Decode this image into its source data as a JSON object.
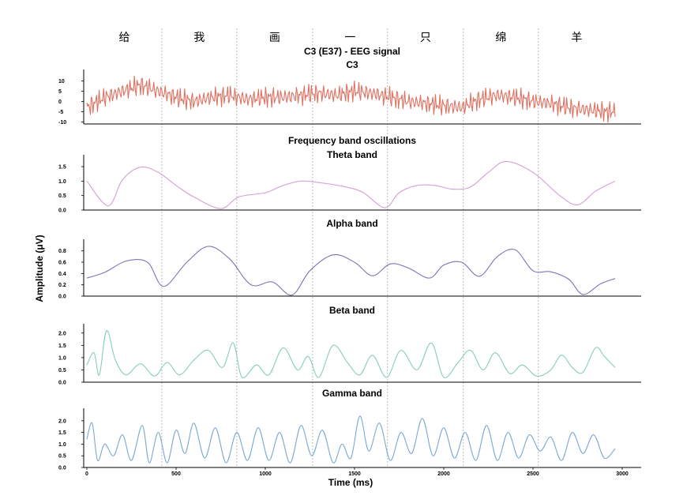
{
  "chart_data": {
    "type": "line",
    "x_axis": {
      "label": "Time (ms)",
      "range": [
        0,
        3000
      ],
      "ticks": [
        0,
        500,
        1000,
        1500,
        2000,
        2500,
        3000
      ]
    },
    "y_axis": {
      "label": "Amplitude  (μV)"
    },
    "words": [
      {
        "text": "给",
        "start": 0,
        "end": 420
      },
      {
        "text": "我",
        "start": 420,
        "end": 840
      },
      {
        "text": "画",
        "start": 840,
        "end": 1265
      },
      {
        "text": "一",
        "start": 1265,
        "end": 1685
      },
      {
        "text": "只",
        "start": 1685,
        "end": 2110
      },
      {
        "text": "绵",
        "start": 2110,
        "end": 2530
      },
      {
        "text": "羊",
        "start": 2530,
        "end": 2960
      }
    ],
    "word_boundaries": [
      420,
      840,
      1265,
      1685,
      2110,
      2530
    ],
    "section_titles": {
      "eeg": "C3 (E37) - EEG signal",
      "bands": "Frequency band oscillations"
    },
    "panels": [
      {
        "id": "eeg",
        "title": "C3",
        "color": "#e07060",
        "ylim": [
          -11,
          14
        ],
        "yticks": [
          10,
          5,
          0,
          -5,
          -10
        ],
        "x": [
          0,
          100,
          200,
          300,
          400,
          500,
          600,
          700,
          800,
          900,
          1000,
          1100,
          1200,
          1300,
          1400,
          1500,
          1600,
          1700,
          1800,
          1900,
          2000,
          2100,
          2200,
          2300,
          2400,
          2500,
          2600,
          2700,
          2800,
          2900,
          2960
        ],
        "values": [
          -3,
          2,
          5,
          8,
          5,
          2,
          0,
          2,
          3,
          1,
          2,
          2,
          3,
          4,
          3,
          5,
          4,
          2,
          0,
          -1,
          -2,
          -3,
          1,
          3,
          2,
          0,
          -1,
          -3,
          -4,
          -5,
          -5
        ]
      },
      {
        "id": "theta",
        "title": "Theta band",
        "color": "#d4a0d2",
        "ylim": [
          0,
          1.8
        ],
        "yticks": [
          1.5,
          1.0,
          0.5,
          0.0
        ],
        "x": [
          0,
          120,
          200,
          300,
          400,
          500,
          600,
          750,
          850,
          1000,
          1100,
          1200,
          1300,
          1450,
          1550,
          1670,
          1750,
          1850,
          1950,
          2050,
          2150,
          2250,
          2350,
          2500,
          2650,
          2750,
          2850,
          2960
        ],
        "values": [
          1.0,
          0.15,
          1.05,
          1.48,
          1.3,
          0.85,
          0.45,
          0.05,
          0.45,
          0.6,
          0.85,
          1.0,
          0.95,
          0.8,
          0.6,
          0.08,
          0.6,
          0.85,
          0.85,
          0.72,
          0.8,
          1.3,
          1.68,
          1.3,
          0.5,
          0.18,
          0.65,
          1.0
        ]
      },
      {
        "id": "alpha",
        "title": "Alpha band",
        "color": "#7d74b8",
        "ylim": [
          0,
          0.95
        ],
        "yticks": [
          0.8,
          0.6,
          0.4,
          0.2,
          0.0
        ],
        "x": [
          0,
          100,
          220,
          340,
          430,
          560,
          680,
          800,
          920,
          1040,
          1150,
          1250,
          1380,
          1500,
          1600,
          1700,
          1800,
          1920,
          2000,
          2100,
          2200,
          2300,
          2400,
          2500,
          2600,
          2700,
          2780,
          2880,
          2960
        ],
        "values": [
          0.32,
          0.42,
          0.62,
          0.6,
          0.17,
          0.6,
          0.88,
          0.66,
          0.2,
          0.25,
          0.02,
          0.45,
          0.73,
          0.6,
          0.36,
          0.57,
          0.5,
          0.32,
          0.55,
          0.6,
          0.35,
          0.7,
          0.82,
          0.45,
          0.43,
          0.3,
          0.03,
          0.22,
          0.31
        ]
      },
      {
        "id": "beta",
        "title": "Beta band",
        "color": "#86cfaf",
        "ylim": [
          0,
          2.25
        ],
        "yticks": [
          2.0,
          1.5,
          1.0,
          0.5,
          0.0
        ],
        "x": [
          0,
          40,
          70,
          110,
          160,
          220,
          300,
          380,
          450,
          520,
          600,
          680,
          760,
          820,
          870,
          950,
          1020,
          1100,
          1180,
          1240,
          1300,
          1380,
          1460,
          1530,
          1600,
          1680,
          1760,
          1850,
          1930,
          2000,
          2080,
          2150,
          2220,
          2290,
          2370,
          2440,
          2520,
          2600,
          2660,
          2720,
          2780,
          2850,
          2900,
          2960
        ],
        "values": [
          0.7,
          1.2,
          0.3,
          2.1,
          0.9,
          0.3,
          0.75,
          0.25,
          0.8,
          0.3,
          0.9,
          1.3,
          0.6,
          1.6,
          0.2,
          0.7,
          0.3,
          1.4,
          0.5,
          1.05,
          0.2,
          1.5,
          0.8,
          0.3,
          1.1,
          0.2,
          1.3,
          0.5,
          1.6,
          0.2,
          0.8,
          1.3,
          0.5,
          1.2,
          0.35,
          0.7,
          0.25,
          0.5,
          1.1,
          0.6,
          0.4,
          1.4,
          1.05,
          0.6
        ]
      },
      {
        "id": "gamma",
        "title": "Gamma band",
        "color": "#7aa8d6",
        "ylim": [
          0,
          2.4
        ],
        "yticks": [
          2.0,
          1.5,
          1.0,
          0.5,
          0.0
        ],
        "x": [
          0,
          30,
          60,
          100,
          150,
          200,
          250,
          310,
          350,
          400,
          450,
          500,
          550,
          600,
          660,
          720,
          780,
          840,
          900,
          960,
          1020,
          1080,
          1140,
          1200,
          1260,
          1320,
          1380,
          1430,
          1480,
          1530,
          1580,
          1640,
          1700,
          1760,
          1820,
          1880,
          1940,
          2000,
          2060,
          2120,
          2180,
          2240,
          2300,
          2360,
          2420,
          2480,
          2540,
          2600,
          2660,
          2720,
          2780,
          2840,
          2900,
          2960
        ],
        "values": [
          1.2,
          1.9,
          0.3,
          1.0,
          0.5,
          1.4,
          0.3,
          1.8,
          0.2,
          1.5,
          0.2,
          1.6,
          0.6,
          1.9,
          0.4,
          1.7,
          0.2,
          1.5,
          0.3,
          1.7,
          0.3,
          1.5,
          0.2,
          1.8,
          0.5,
          1.6,
          0.2,
          1.0,
          0.4,
          2.2,
          0.7,
          1.9,
          0.3,
          1.5,
          0.6,
          2.1,
          0.5,
          1.7,
          0.4,
          1.5,
          0.3,
          1.8,
          0.3,
          1.5,
          0.4,
          1.4,
          0.7,
          1.3,
          0.3,
          1.5,
          0.6,
          1.4,
          0.4,
          0.8
        ]
      }
    ]
  }
}
